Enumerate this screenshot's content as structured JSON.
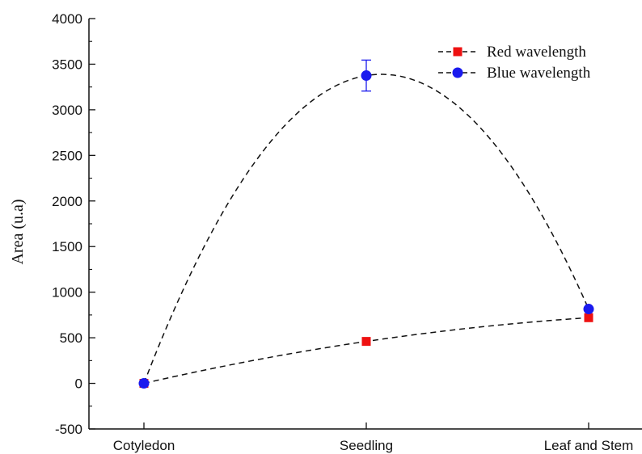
{
  "chart_data": {
    "type": "scatter",
    "categories": [
      "Cotyledon",
      "Seedling",
      "Leaf and Stem"
    ],
    "ylabel": "Area (u.a)",
    "xlabel": "",
    "ylim": [
      -500,
      4000
    ],
    "yticks": [
      -500,
      0,
      500,
      1000,
      1500,
      2000,
      2500,
      3000,
      3500,
      4000
    ],
    "grid": false,
    "legend_position": "top-right",
    "series": [
      {
        "name": "Red wavelength",
        "marker": "square",
        "color": "#ee1111",
        "values": [
          0,
          460,
          720
        ],
        "fit_curve": "dashed"
      },
      {
        "name": "Blue wavelength",
        "marker": "circle",
        "color": "#1a1aee",
        "values": [
          0,
          3375,
          815
        ],
        "errors": [
          0,
          170,
          0
        ],
        "fit_curve": "dashed"
      }
    ]
  }
}
